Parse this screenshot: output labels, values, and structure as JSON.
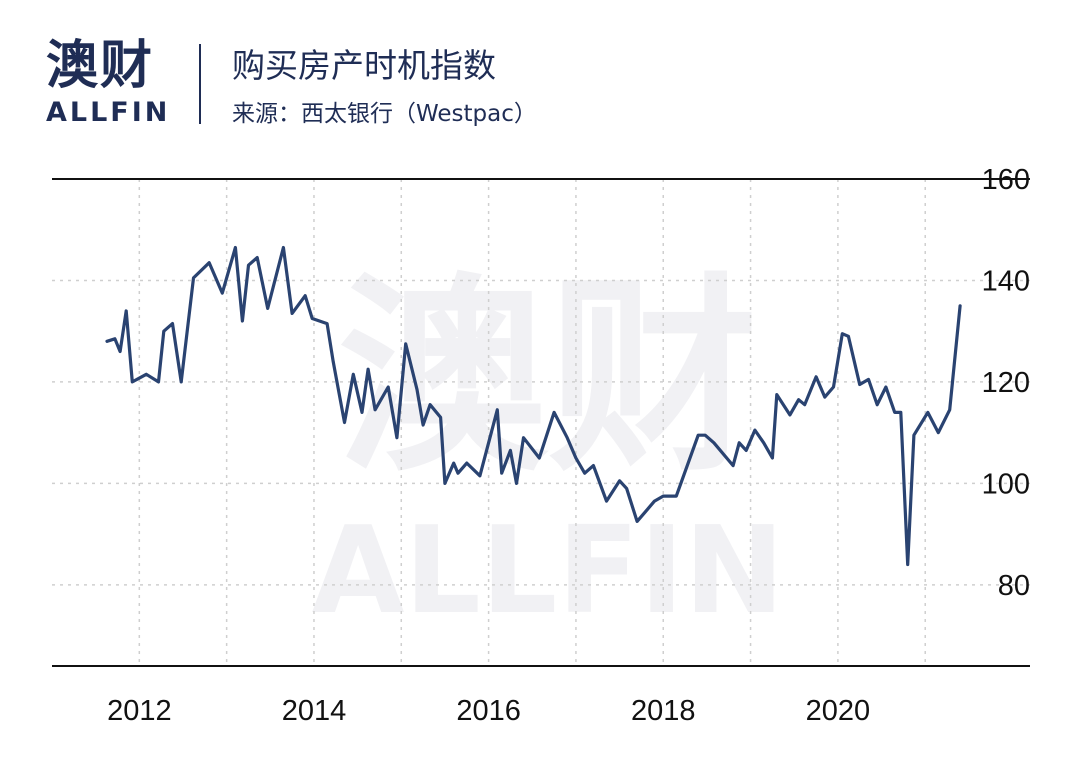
{
  "brand": {
    "logo_zh": "澳财",
    "logo_en": "ALLFIN",
    "watermark_zh": "澳财",
    "watermark_en": "ALLFIN"
  },
  "header": {
    "title": "购买房产时机指数",
    "subtitle": "来源：西太银行（Westpac）"
  },
  "colors": {
    "line": "#2a4371",
    "brand": "#1f2d55",
    "accent": "#d6336c"
  },
  "chart_data": {
    "type": "line",
    "title": "购买房产时机指数",
    "xlabel": "",
    "ylabel": "",
    "xlim": [
      2011.0,
      2022.2
    ],
    "ylim": [
      64,
      160
    ],
    "y_ticks": [
      80,
      100,
      120,
      140,
      160
    ],
    "x_ticks": [
      2012,
      2014,
      2016,
      2018,
      2020
    ],
    "y_axis_side": "right",
    "grid": true,
    "series": [
      {
        "name": "",
        "points": [
          [
            2011.63,
            128.0
          ],
          [
            2011.72,
            128.5
          ],
          [
            2011.78,
            126.0
          ],
          [
            2011.85,
            134.0
          ],
          [
            2011.92,
            120.0
          ],
          [
            2012.08,
            121.5
          ],
          [
            2012.22,
            120.0
          ],
          [
            2012.28,
            130.0
          ],
          [
            2012.38,
            131.5
          ],
          [
            2012.48,
            120.0
          ],
          [
            2012.62,
            140.5
          ],
          [
            2012.8,
            143.5
          ],
          [
            2012.95,
            137.5
          ],
          [
            2013.1,
            146.5
          ],
          [
            2013.18,
            132.0
          ],
          [
            2013.25,
            143.0
          ],
          [
            2013.35,
            144.5
          ],
          [
            2013.47,
            134.5
          ],
          [
            2013.65,
            146.5
          ],
          [
            2013.75,
            133.5
          ],
          [
            2013.9,
            137.0
          ],
          [
            2013.98,
            132.5
          ],
          [
            2014.15,
            131.5
          ],
          [
            2014.22,
            124.0
          ],
          [
            2014.35,
            112.0
          ],
          [
            2014.45,
            121.5
          ],
          [
            2014.55,
            114.0
          ],
          [
            2014.62,
            122.5
          ],
          [
            2014.7,
            114.5
          ],
          [
            2014.85,
            119.0
          ],
          [
            2014.95,
            109.0
          ],
          [
            2015.05,
            127.5
          ],
          [
            2015.18,
            118.5
          ],
          [
            2015.25,
            111.5
          ],
          [
            2015.33,
            115.5
          ],
          [
            2015.45,
            113.0
          ],
          [
            2015.5,
            100.0
          ],
          [
            2015.6,
            104.0
          ],
          [
            2015.65,
            102.0
          ],
          [
            2015.75,
            104.0
          ],
          [
            2015.9,
            101.5
          ],
          [
            2016.1,
            114.5
          ],
          [
            2016.15,
            102.0
          ],
          [
            2016.25,
            106.5
          ],
          [
            2016.32,
            100.0
          ],
          [
            2016.4,
            109.0
          ],
          [
            2016.58,
            105.0
          ],
          [
            2016.75,
            114.0
          ],
          [
            2016.9,
            109.0
          ],
          [
            2017.0,
            105.0
          ],
          [
            2017.1,
            102.0
          ],
          [
            2017.2,
            103.5
          ],
          [
            2017.35,
            96.5
          ],
          [
            2017.5,
            100.5
          ],
          [
            2017.58,
            99.0
          ],
          [
            2017.7,
            92.5
          ],
          [
            2017.8,
            94.5
          ],
          [
            2017.9,
            96.5
          ],
          [
            2018.0,
            97.5
          ],
          [
            2018.15,
            97.5
          ],
          [
            2018.4,
            109.5
          ],
          [
            2018.48,
            109.5
          ],
          [
            2018.58,
            108.0
          ],
          [
            2018.8,
            103.5
          ],
          [
            2018.87,
            108.0
          ],
          [
            2018.95,
            106.5
          ],
          [
            2019.05,
            110.5
          ],
          [
            2019.15,
            108.0
          ],
          [
            2019.25,
            105.0
          ],
          [
            2019.3,
            117.5
          ],
          [
            2019.45,
            113.5
          ],
          [
            2019.55,
            116.5
          ],
          [
            2019.62,
            115.5
          ],
          [
            2019.75,
            121.0
          ],
          [
            2019.85,
            117.0
          ],
          [
            2019.95,
            119.0
          ],
          [
            2020.05,
            129.5
          ],
          [
            2020.12,
            129.0
          ],
          [
            2020.25,
            119.5
          ],
          [
            2020.35,
            120.5
          ],
          [
            2020.45,
            115.5
          ],
          [
            2020.55,
            119.0
          ],
          [
            2020.65,
            114.0
          ],
          [
            2020.72,
            114.0
          ],
          [
            2020.8,
            84.0
          ],
          [
            2020.87,
            109.5
          ],
          [
            2021.03,
            114.0
          ],
          [
            2021.15,
            110.0
          ],
          [
            2021.28,
            114.5
          ],
          [
            2021.4,
            135.0
          ]
        ]
      }
    ]
  }
}
